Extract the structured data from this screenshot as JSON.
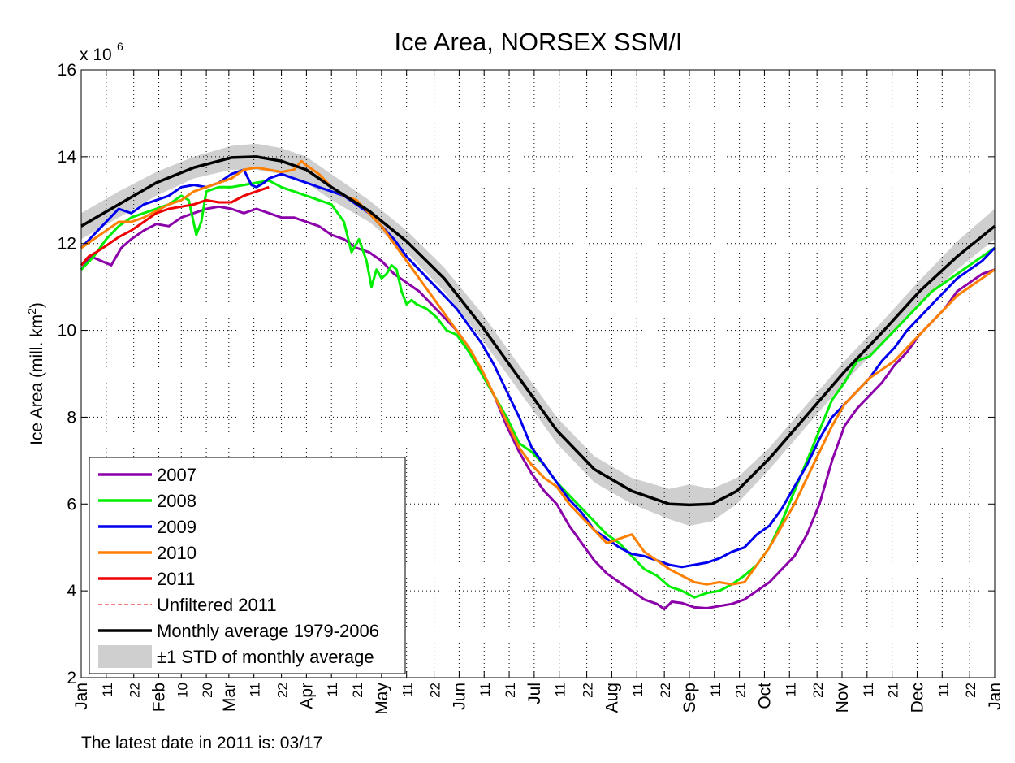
{
  "chart_data": {
    "type": "line",
    "title": "Ice Area, NORSEX SSM/I",
    "ylabel": "Ice Area (mill. km",
    "ylabel_sup": "2",
    "ylabel_end": ")",
    "y_exponent_base": "x 10",
    "y_exponent_power": "6",
    "ylim": [
      2,
      16
    ],
    "yticks": [
      2,
      4,
      6,
      8,
      10,
      12,
      14,
      16
    ],
    "xlim": [
      0,
      365
    ],
    "x_unit": "day of year",
    "grid": true,
    "x_ticks": [
      {
        "d": 0,
        "label": "Jan"
      },
      {
        "d": 10,
        "label": "11"
      },
      {
        "d": 21,
        "label": "22"
      },
      {
        "d": 31,
        "label": "Feb"
      },
      {
        "d": 40,
        "label": "10"
      },
      {
        "d": 50,
        "label": "20"
      },
      {
        "d": 59,
        "label": "Mar"
      },
      {
        "d": 69,
        "label": "11"
      },
      {
        "d": 80,
        "label": "22"
      },
      {
        "d": 90,
        "label": "Apr"
      },
      {
        "d": 100,
        "label": "11"
      },
      {
        "d": 110,
        "label": "21"
      },
      {
        "d": 120,
        "label": "May"
      },
      {
        "d": 130,
        "label": "11"
      },
      {
        "d": 141,
        "label": "22"
      },
      {
        "d": 151,
        "label": "Jun"
      },
      {
        "d": 161,
        "label": "11"
      },
      {
        "d": 171,
        "label": "21"
      },
      {
        "d": 181,
        "label": "Jul"
      },
      {
        "d": 191,
        "label": "11"
      },
      {
        "d": 202,
        "label": "22"
      },
      {
        "d": 212,
        "label": "Aug"
      },
      {
        "d": 222,
        "label": "11"
      },
      {
        "d": 233,
        "label": "22"
      },
      {
        "d": 243,
        "label": "Sep"
      },
      {
        "d": 253,
        "label": "11"
      },
      {
        "d": 263,
        "label": "21"
      },
      {
        "d": 273,
        "label": "Oct"
      },
      {
        "d": 283,
        "label": "11"
      },
      {
        "d": 294,
        "label": "22"
      },
      {
        "d": 304,
        "label": "Nov"
      },
      {
        "d": 314,
        "label": "11"
      },
      {
        "d": 324,
        "label": "21"
      },
      {
        "d": 334,
        "label": "Dec"
      },
      {
        "d": 344,
        "label": "11"
      },
      {
        "d": 355,
        "label": "22"
      },
      {
        "d": 365,
        "label": "Jan"
      }
    ],
    "std_band": {
      "name": "±1 STD of monthly average",
      "color": "#cfcfcf",
      "x": [
        0,
        15,
        30,
        45,
        60,
        70,
        80,
        90,
        100,
        115,
        130,
        145,
        160,
        175,
        190,
        205,
        220,
        235,
        243,
        252,
        262,
        275,
        290,
        305,
        320,
        335,
        350,
        365
      ],
      "low": [
        12.1,
        12.6,
        13.1,
        13.5,
        13.7,
        13.7,
        13.6,
        13.4,
        13.0,
        12.5,
        11.8,
        10.9,
        9.8,
        8.6,
        7.4,
        6.5,
        6.0,
        5.65,
        5.5,
        5.6,
        6.0,
        6.8,
        7.8,
        8.8,
        9.7,
        10.6,
        11.4,
        12.1
      ],
      "high": [
        12.7,
        13.2,
        13.65,
        14.0,
        14.25,
        14.3,
        14.2,
        14.0,
        13.6,
        13.0,
        12.3,
        11.45,
        10.4,
        9.2,
        8.0,
        7.1,
        6.6,
        6.35,
        6.45,
        6.35,
        6.6,
        7.3,
        8.3,
        9.3,
        10.2,
        11.15,
        12.05,
        12.8
      ]
    },
    "series": [
      {
        "name": "2007",
        "color": "#8b00a8",
        "x": [
          0,
          4,
          8,
          12,
          16,
          20,
          25,
          30,
          35,
          40,
          45,
          50,
          55,
          60,
          65,
          70,
          75,
          80,
          85,
          90,
          95,
          100,
          105,
          110,
          115,
          120,
          125,
          130,
          135,
          140,
          145,
          150,
          155,
          160,
          165,
          170,
          175,
          180,
          185,
          190,
          195,
          200,
          205,
          210,
          215,
          220,
          225,
          230,
          233,
          236,
          240,
          245,
          250,
          255,
          260,
          265,
          270,
          275,
          280,
          285,
          290,
          295,
          300,
          305,
          310,
          315,
          320,
          325,
          330,
          335,
          340,
          345,
          350,
          355,
          360,
          365
        ],
        "y": [
          11.4,
          11.7,
          11.6,
          11.5,
          11.9,
          12.1,
          12.3,
          12.45,
          12.4,
          12.6,
          12.7,
          12.8,
          12.85,
          12.8,
          12.7,
          12.8,
          12.7,
          12.6,
          12.6,
          12.5,
          12.4,
          12.2,
          12.1,
          11.9,
          11.8,
          11.6,
          11.3,
          11.1,
          10.9,
          10.6,
          10.3,
          10.0,
          9.6,
          9.0,
          8.5,
          7.8,
          7.2,
          6.7,
          6.3,
          6.0,
          5.5,
          5.1,
          4.7,
          4.4,
          4.2,
          4.0,
          3.8,
          3.7,
          3.58,
          3.75,
          3.72,
          3.62,
          3.6,
          3.65,
          3.7,
          3.8,
          4.0,
          4.2,
          4.5,
          4.8,
          5.3,
          6.0,
          7.0,
          7.8,
          8.2,
          8.5,
          8.8,
          9.2,
          9.5,
          9.9,
          10.2,
          10.5,
          10.9,
          11.1,
          11.3,
          11.4
        ]
      },
      {
        "name": "2008",
        "color": "#00ee00",
        "x": [
          0,
          5,
          10,
          15,
          20,
          25,
          30,
          35,
          40,
          43,
          46,
          48,
          50,
          55,
          60,
          65,
          70,
          75,
          80,
          85,
          90,
          95,
          100,
          105,
          108,
          111,
          114,
          116,
          118,
          120,
          122,
          124,
          126,
          128,
          130,
          132,
          134,
          138,
          142,
          146,
          150,
          155,
          160,
          165,
          170,
          175,
          180,
          185,
          190,
          195,
          200,
          205,
          210,
          215,
          220,
          225,
          230,
          235,
          240,
          245,
          250,
          255,
          260,
          265,
          270,
          275,
          280,
          285,
          290,
          295,
          300,
          305,
          310,
          315,
          320,
          325,
          330,
          335,
          340,
          345,
          350,
          355,
          360,
          365
        ],
        "y": [
          11.4,
          11.7,
          12.1,
          12.4,
          12.6,
          12.7,
          12.8,
          12.9,
          13.1,
          13.0,
          12.2,
          12.5,
          13.2,
          13.3,
          13.3,
          13.35,
          13.4,
          13.45,
          13.3,
          13.2,
          13.1,
          13.0,
          12.9,
          12.5,
          11.8,
          12.1,
          11.6,
          11.0,
          11.4,
          11.2,
          11.3,
          11.5,
          11.4,
          10.9,
          10.6,
          10.7,
          10.6,
          10.5,
          10.3,
          10.0,
          9.9,
          9.5,
          9.0,
          8.5,
          8.0,
          7.4,
          7.2,
          6.9,
          6.5,
          6.2,
          5.9,
          5.6,
          5.3,
          5.1,
          4.8,
          4.5,
          4.35,
          4.1,
          4.0,
          3.85,
          3.95,
          4.0,
          4.15,
          4.35,
          4.6,
          5.0,
          5.6,
          6.3,
          7.0,
          7.7,
          8.4,
          8.8,
          9.3,
          9.4,
          9.7,
          10.0,
          10.3,
          10.6,
          10.9,
          11.1,
          11.3,
          11.5,
          11.7,
          11.9
        ]
      },
      {
        "name": "2009",
        "color": "#0000ee",
        "x": [
          0,
          5,
          10,
          15,
          20,
          25,
          30,
          35,
          40,
          45,
          50,
          55,
          60,
          65,
          68,
          70,
          73,
          75,
          80,
          85,
          90,
          95,
          100,
          105,
          110,
          115,
          120,
          125,
          130,
          135,
          140,
          145,
          150,
          155,
          160,
          165,
          170,
          175,
          180,
          185,
          190,
          195,
          200,
          205,
          210,
          215,
          220,
          225,
          230,
          235,
          240,
          245,
          250,
          255,
          260,
          265,
          270,
          275,
          280,
          285,
          290,
          295,
          300,
          305,
          310,
          315,
          320,
          325,
          330,
          335,
          340,
          345,
          350,
          355,
          360,
          365
        ],
        "y": [
          11.9,
          12.2,
          12.5,
          12.8,
          12.7,
          12.9,
          13.0,
          13.1,
          13.3,
          13.35,
          13.3,
          13.4,
          13.6,
          13.7,
          13.35,
          13.3,
          13.4,
          13.5,
          13.6,
          13.5,
          13.4,
          13.3,
          13.2,
          13.1,
          12.9,
          12.7,
          12.4,
          12.1,
          11.7,
          11.4,
          11.1,
          10.8,
          10.5,
          10.1,
          9.7,
          9.2,
          8.6,
          8.0,
          7.3,
          6.9,
          6.5,
          6.1,
          5.8,
          5.4,
          5.2,
          5.0,
          4.85,
          4.8,
          4.7,
          4.6,
          4.55,
          4.6,
          4.65,
          4.75,
          4.9,
          5.0,
          5.3,
          5.5,
          5.9,
          6.4,
          6.9,
          7.5,
          8.0,
          8.3,
          8.6,
          8.9,
          9.3,
          9.6,
          10.0,
          10.3,
          10.6,
          10.9,
          11.2,
          11.4,
          11.6,
          11.9
        ]
      },
      {
        "name": "2010",
        "color": "#ff7f00",
        "x": [
          0,
          5,
          10,
          15,
          20,
          25,
          30,
          35,
          40,
          45,
          50,
          55,
          60,
          65,
          70,
          75,
          80,
          85,
          88,
          90,
          95,
          100,
          105,
          110,
          115,
          120,
          125,
          130,
          135,
          140,
          145,
          150,
          155,
          160,
          165,
          170,
          175,
          180,
          185,
          190,
          195,
          200,
          205,
          210,
          215,
          220,
          225,
          230,
          235,
          240,
          245,
          250,
          255,
          260,
          265,
          270,
          275,
          280,
          285,
          290,
          295,
          300,
          305,
          310,
          315,
          320,
          325,
          330,
          335,
          340,
          345,
          350,
          355,
          360,
          365
        ],
        "y": [
          11.9,
          12.1,
          12.3,
          12.5,
          12.5,
          12.6,
          12.75,
          12.9,
          13.0,
          13.2,
          13.3,
          13.4,
          13.5,
          13.7,
          13.75,
          13.7,
          13.65,
          13.7,
          13.9,
          13.8,
          13.6,
          13.3,
          13.1,
          13.0,
          12.7,
          12.4,
          12.0,
          11.6,
          11.2,
          10.8,
          10.4,
          10.0,
          9.6,
          9.1,
          8.5,
          7.9,
          7.3,
          6.9,
          6.6,
          6.4,
          6.0,
          5.7,
          5.4,
          5.1,
          5.2,
          5.3,
          4.9,
          4.7,
          4.5,
          4.35,
          4.2,
          4.15,
          4.2,
          4.15,
          4.2,
          4.6,
          5.0,
          5.5,
          6.0,
          6.6,
          7.2,
          7.8,
          8.3,
          8.6,
          8.9,
          9.1,
          9.3,
          9.6,
          9.9,
          10.2,
          10.5,
          10.8,
          11.0,
          11.2,
          11.4
        ]
      },
      {
        "name": "2011",
        "color": "#ee0000",
        "x": [
          0,
          3,
          6,
          10,
          15,
          20,
          25,
          30,
          35,
          40,
          45,
          50,
          55,
          60,
          65,
          70,
          75
        ],
        "y": [
          11.5,
          11.7,
          11.8,
          11.95,
          12.15,
          12.3,
          12.5,
          12.7,
          12.8,
          12.85,
          12.9,
          13.0,
          12.95,
          12.95,
          13.1,
          13.2,
          13.3
        ]
      },
      {
        "name": "Unfiltered 2011",
        "color": "#ee0000",
        "dashed": true,
        "x": [
          0,
          3,
          6,
          10,
          15,
          20,
          25,
          30,
          35,
          40,
          45,
          50,
          55,
          60,
          65,
          70,
          75
        ],
        "y": [
          11.5,
          11.7,
          11.8,
          11.95,
          12.15,
          12.3,
          12.5,
          12.7,
          12.8,
          12.85,
          12.9,
          13.0,
          12.95,
          12.95,
          13.1,
          13.2,
          13.3
        ]
      },
      {
        "name": "Monthly average 1979-2006",
        "color": "#000000",
        "x": [
          0,
          15,
          30,
          45,
          60,
          70,
          80,
          90,
          100,
          115,
          130,
          145,
          160,
          175,
          190,
          205,
          220,
          235,
          243,
          252,
          262,
          275,
          290,
          305,
          320,
          335,
          350,
          365
        ],
        "y": [
          12.4,
          12.9,
          13.4,
          13.75,
          13.98,
          14.0,
          13.9,
          13.7,
          13.3,
          12.75,
          12.05,
          11.2,
          10.1,
          8.9,
          7.7,
          6.8,
          6.3,
          6.0,
          5.98,
          6.0,
          6.3,
          7.05,
          8.05,
          9.05,
          9.95,
          10.9,
          11.7,
          12.4
        ]
      }
    ],
    "legend": {
      "position": "bottom-left",
      "entries": [
        "2007",
        "2008",
        "2009",
        "2010",
        "2011",
        "Unfiltered 2011",
        "Monthly average 1979-2006",
        "±1 STD of monthly average"
      ]
    }
  },
  "footnote": "The latest date in 2011 is: 03/17"
}
